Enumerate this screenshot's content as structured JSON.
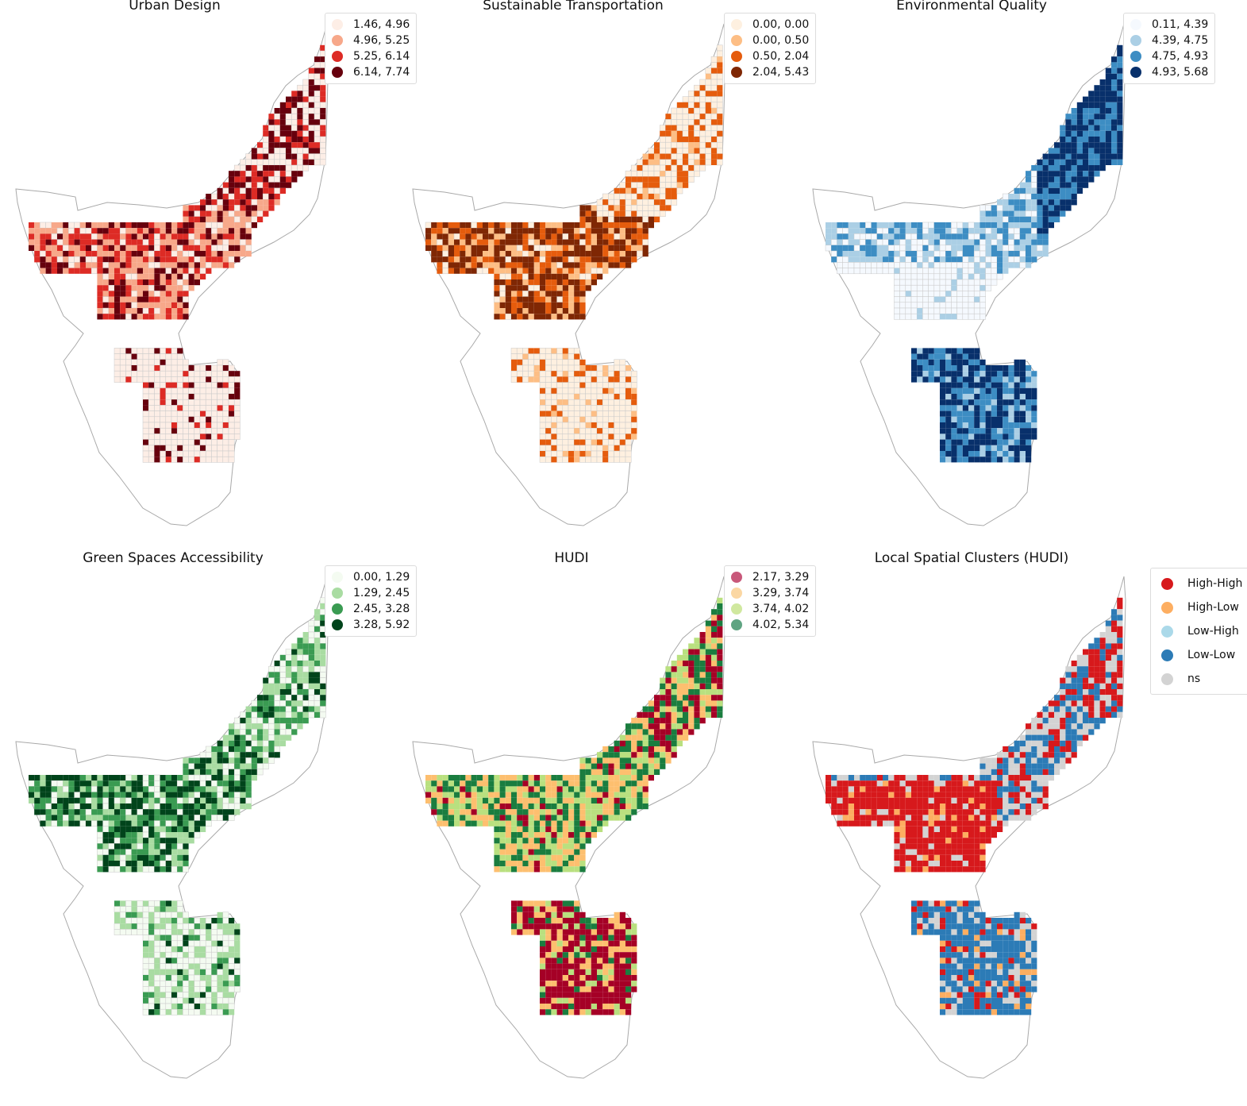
{
  "figure": {
    "outline_color": "#a9a9a9",
    "panels": [
      {
        "id": "urban-design",
        "title": "Urban Design",
        "legend": [
          {
            "label": "1.46, 4.96",
            "color": "#fdeee6"
          },
          {
            "label": "4.96, 5.25",
            "color": "#f7a88a"
          },
          {
            "label": "5.25, 6.14",
            "color": "#dd2b25"
          },
          {
            "label": "6.14, 7.74",
            "color": "#67000d"
          }
        ]
      },
      {
        "id": "sustainable-transportation",
        "title": "Sustainable Transportation",
        "legend": [
          {
            "label": "0.00, 0.00",
            "color": "#fef0e0"
          },
          {
            "label": "0.00, 0.50",
            "color": "#fdbe85"
          },
          {
            "label": "0.50, 2.04",
            "color": "#e55c0d"
          },
          {
            "label": "2.04, 5.43",
            "color": "#7f2704"
          }
        ]
      },
      {
        "id": "environmental-quality",
        "title": "Environmental Quality",
        "legend": [
          {
            "label": "0.11, 4.39",
            "color": "#f5f9fe"
          },
          {
            "label": "4.39, 4.75",
            "color": "#abcfe5"
          },
          {
            "label": "4.75, 4.93",
            "color": "#3d8dc3"
          },
          {
            "label": "4.93, 5.68",
            "color": "#08306b"
          }
        ]
      },
      {
        "id": "green-spaces-accessibility",
        "title": "Green Spaces Accessibility",
        "legend": [
          {
            "label": "0.00, 1.29",
            "color": "#f4fbf1"
          },
          {
            "label": "1.29, 2.45",
            "color": "#a9dca2"
          },
          {
            "label": "2.45, 3.28",
            "color": "#3a9b52"
          },
          {
            "label": "3.28, 5.92",
            "color": "#00441b"
          }
        ]
      },
      {
        "id": "hudi",
        "title": "HUDI",
        "legend": [
          {
            "label": "2.17, 3.29",
            "color": "#c8587a"
          },
          {
            "label": "3.29, 3.74",
            "color": "#fbd7a3"
          },
          {
            "label": "3.74, 4.02",
            "color": "#d0e89f"
          },
          {
            "label": "4.02, 5.34",
            "color": "#5fa482"
          }
        ],
        "cell_colors": [
          "#a50026",
          "#fdbf6f",
          "#b9e07f",
          "#1a7d3f"
        ]
      },
      {
        "id": "local-spatial-clusters",
        "title": "Local Spatial Clusters (HUDI)",
        "legend": [
          {
            "label": "High-High",
            "color": "#d7191c"
          },
          {
            "label": "High-Low",
            "color": "#fdae61"
          },
          {
            "label": "Low-High",
            "color": "#abd9e9"
          },
          {
            "label": "Low-Low",
            "color": "#2c7bb6"
          },
          {
            "label": "ns",
            "color": "#d3d3d3"
          }
        ]
      }
    ]
  }
}
